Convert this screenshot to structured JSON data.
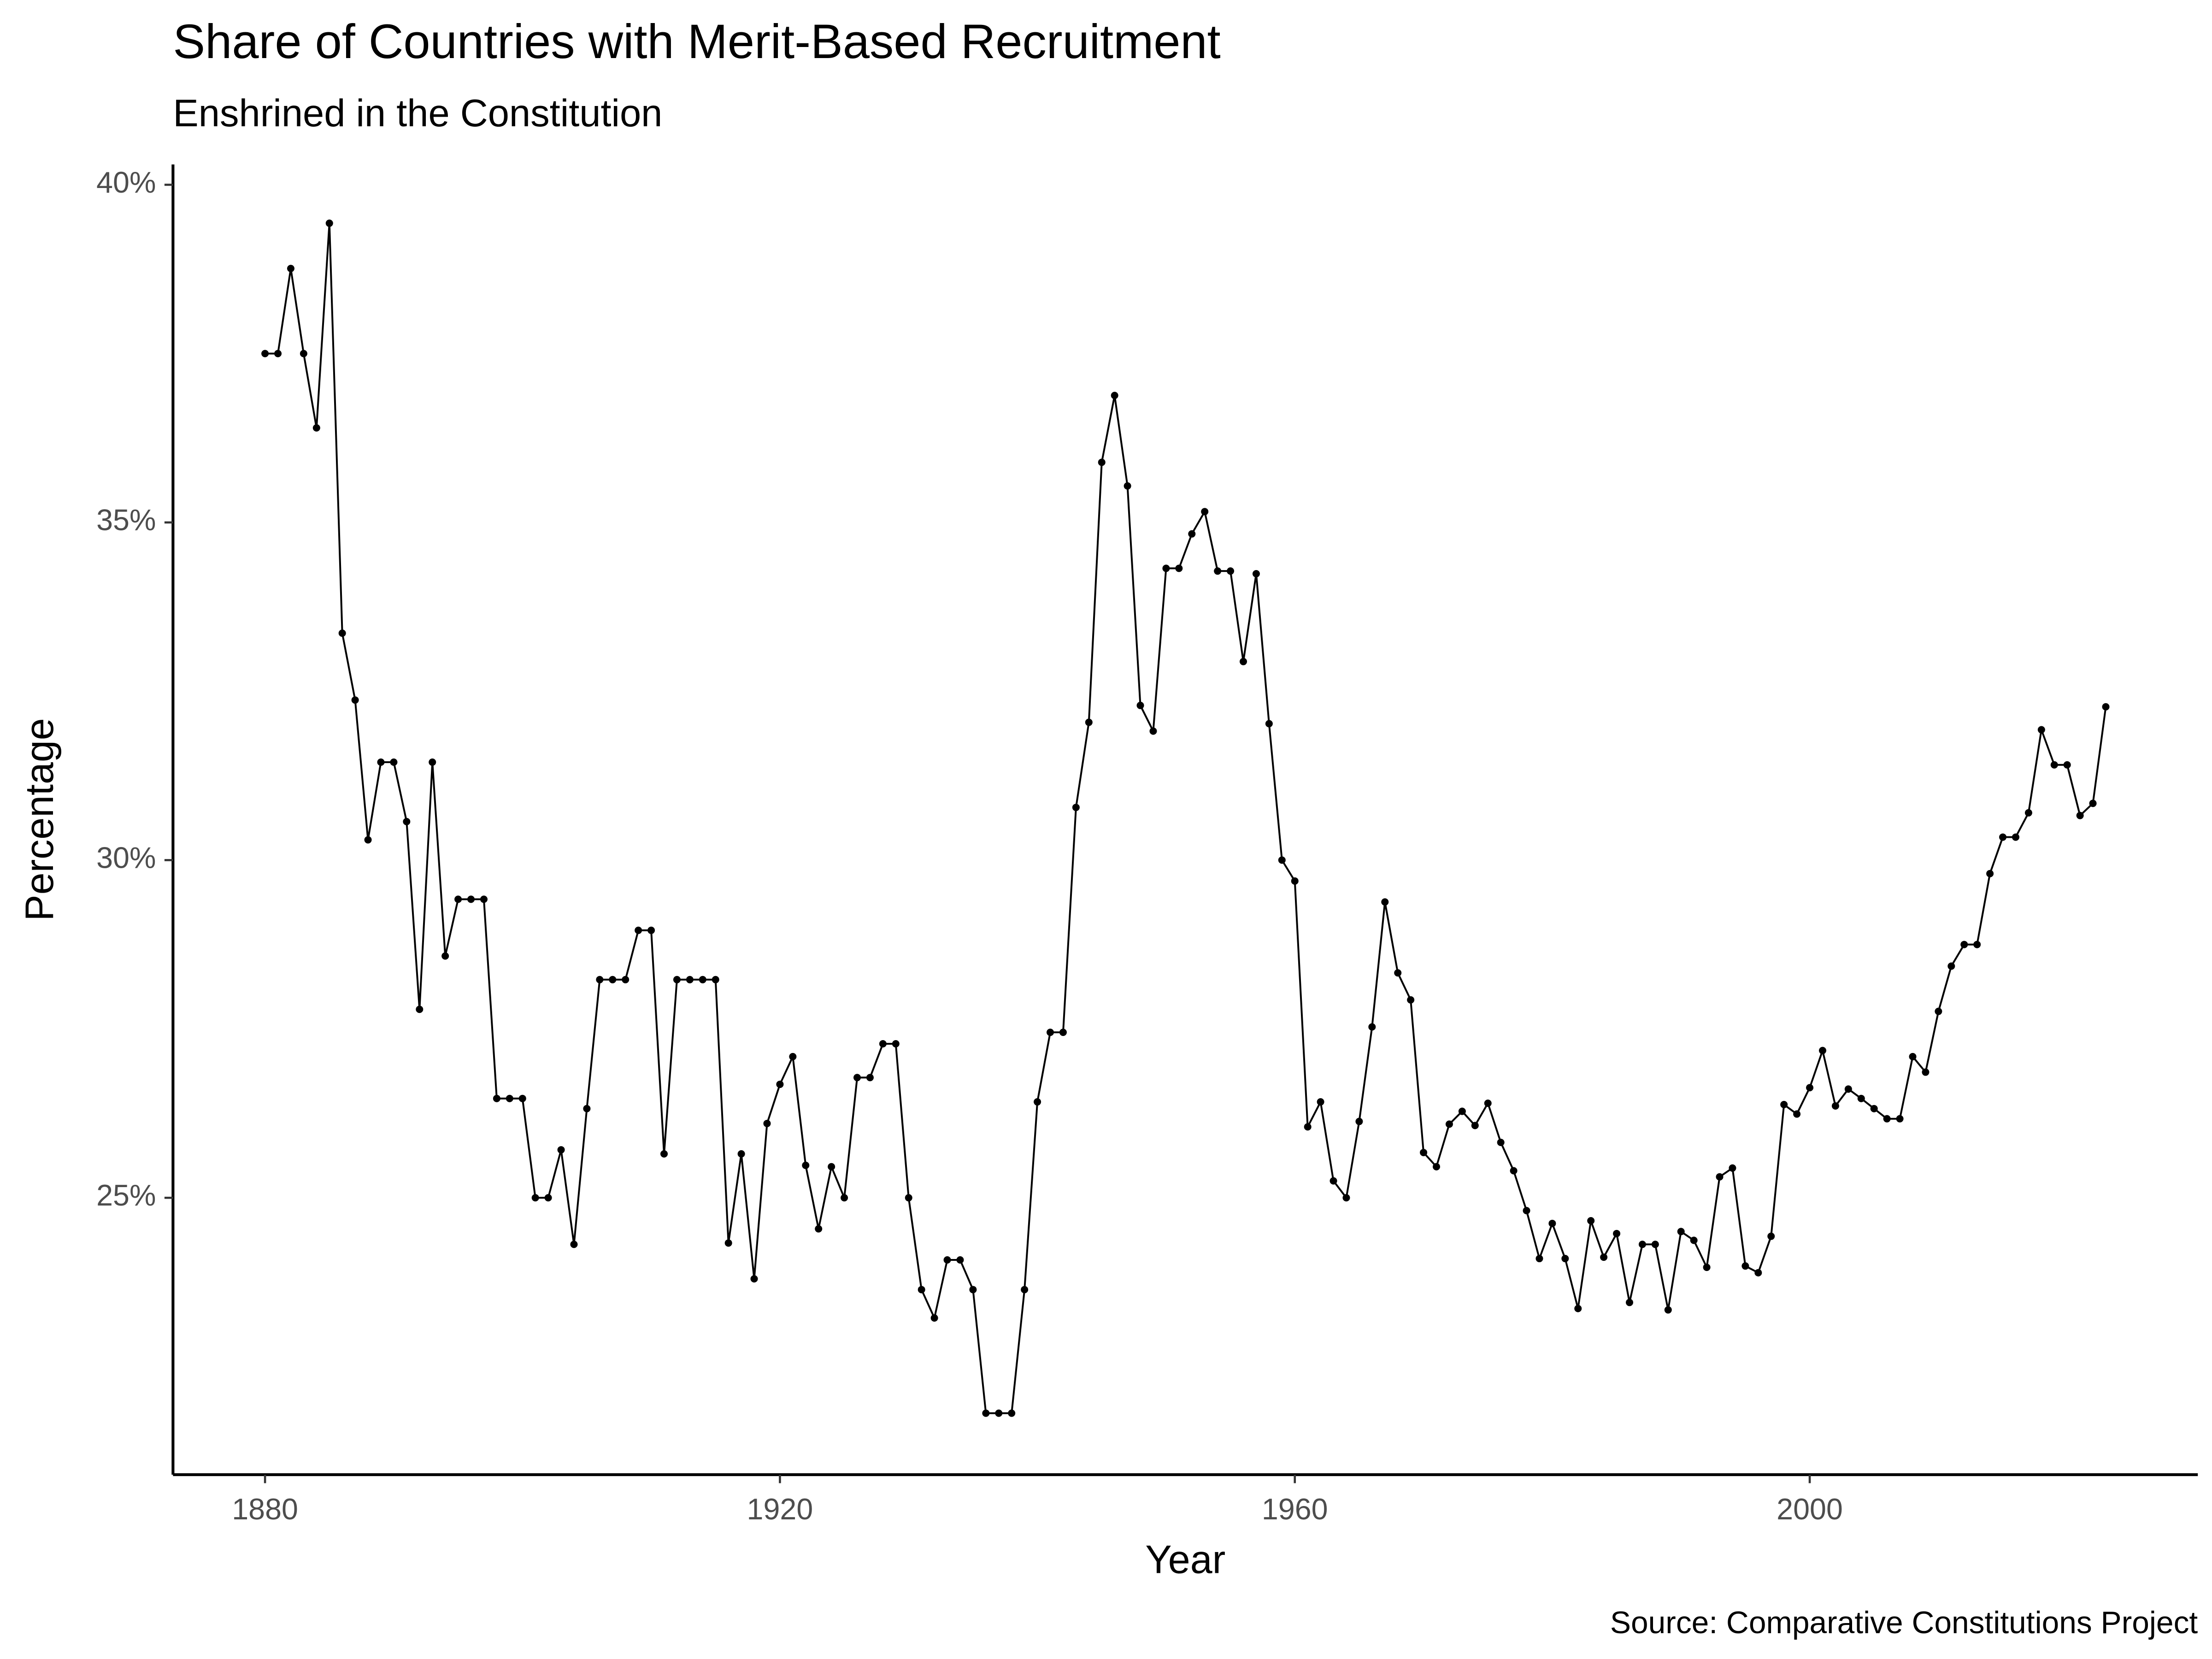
{
  "chart_data": {
    "type": "line",
    "title": "Share of Countries with Merit-Based Recruitment",
    "subtitle": "Enshrined in the Constitution",
    "caption": "Source: Comparative Constitutions Project",
    "x_label": "Year",
    "y_label": "Percentage",
    "x": [
      1880,
      1881,
      1882,
      1883,
      1884,
      1885,
      1886,
      1887,
      1888,
      1889,
      1890,
      1891,
      1892,
      1893,
      1894,
      1895,
      1896,
      1897,
      1898,
      1899,
      1900,
      1901,
      1902,
      1903,
      1904,
      1905,
      1906,
      1907,
      1908,
      1909,
      1910,
      1911,
      1912,
      1913,
      1914,
      1915,
      1916,
      1917,
      1918,
      1919,
      1920,
      1921,
      1922,
      1923,
      1924,
      1925,
      1926,
      1927,
      1928,
      1929,
      1930,
      1931,
      1932,
      1933,
      1934,
      1935,
      1936,
      1937,
      1938,
      1939,
      1940,
      1941,
      1942,
      1943,
      1944,
      1945,
      1946,
      1947,
      1948,
      1949,
      1950,
      1951,
      1952,
      1953,
      1954,
      1955,
      1956,
      1957,
      1958,
      1959,
      1960,
      1961,
      1962,
      1963,
      1964,
      1965,
      1966,
      1967,
      1968,
      1969,
      1970,
      1971,
      1972,
      1973,
      1974,
      1975,
      1976,
      1977,
      1978,
      1979,
      1980,
      1981,
      1982,
      1983,
      1984,
      1985,
      1986,
      1987,
      1988,
      1989,
      1990,
      1991,
      1992,
      1993,
      1994,
      1995,
      1996,
      1997,
      1998,
      1999,
      2000,
      2001,
      2002,
      2003,
      2004,
      2005,
      2006,
      2007,
      2008,
      2009,
      2010,
      2011,
      2012,
      2013,
      2014,
      2015,
      2016,
      2017,
      2018,
      2019,
      2020,
      2021,
      2022,
      2023
    ],
    "series": [
      {
        "name": "Percentage",
        "color": "#000000",
        "values": [
          37.5,
          37.5,
          38.76,
          37.5,
          36.4,
          39.43,
          33.36,
          32.37,
          30.3,
          31.45,
          31.45,
          30.57,
          27.79,
          31.45,
          28.58,
          29.42,
          29.42,
          29.42,
          26.47,
          26.47,
          26.47,
          25.0,
          25.0,
          25.71,
          24.31,
          26.32,
          28.23,
          28.23,
          28.23,
          28.96,
          28.96,
          25.65,
          28.23,
          28.23,
          28.23,
          28.23,
          24.33,
          25.65,
          23.8,
          26.1,
          26.68,
          27.09,
          25.48,
          24.54,
          25.46,
          25.0,
          26.78,
          26.78,
          27.28,
          27.28,
          25.0,
          23.64,
          23.22,
          24.08,
          24.08,
          23.64,
          21.81,
          21.81,
          21.81,
          23.64,
          26.42,
          27.45,
          27.45,
          30.78,
          32.04,
          35.89,
          36.88,
          35.54,
          32.29,
          31.91,
          34.32,
          34.32,
          34.83,
          35.16,
          34.28,
          34.28,
          32.94,
          34.24,
          32.02,
          30.0,
          29.69,
          26.05,
          26.42,
          25.25,
          25.0,
          26.13,
          27.53,
          29.38,
          28.33,
          27.93,
          25.67,
          25.46,
          26.09,
          26.28,
          26.07,
          26.4,
          25.82,
          25.4,
          24.81,
          24.1,
          24.62,
          24.1,
          23.36,
          24.66,
          24.12,
          24.47,
          23.45,
          24.31,
          24.31,
          23.34,
          24.5,
          24.37,
          23.97,
          25.31,
          25.44,
          23.99,
          23.89,
          24.43,
          26.38,
          26.24,
          26.63,
          27.18,
          26.36,
          26.61,
          26.47,
          26.32,
          26.17,
          26.17,
          27.09,
          26.86,
          27.76,
          28.43,
          28.75,
          28.75,
          29.8,
          30.34,
          30.34,
          30.7,
          31.93,
          31.41,
          31.41,
          30.66,
          30.84,
          32.27
        ]
      }
    ],
    "xlim": [
      1872.85,
      2030.15
    ],
    "xticks": [
      1880,
      1920,
      1960,
      2000
    ],
    "ylim": [
      20.9,
      40.3
    ],
    "yticks": [
      {
        "value": 25,
        "label": "25%"
      },
      {
        "value": 30,
        "label": "30%"
      },
      {
        "value": 35,
        "label": "35%"
      },
      {
        "value": 40,
        "label": "40%"
      }
    ],
    "grid": false
  }
}
